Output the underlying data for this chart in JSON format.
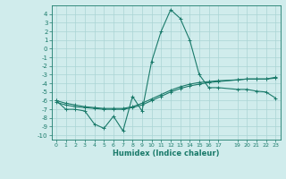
{
  "xlabel": "Humidex (Indice chaleur)",
  "x": [
    0,
    1,
    2,
    3,
    4,
    5,
    6,
    7,
    8,
    9,
    10,
    11,
    12,
    13,
    14,
    15,
    16,
    17,
    19,
    20,
    21,
    22,
    23
  ],
  "line1": [
    -6.0,
    -7.0,
    -7.0,
    -7.2,
    -8.7,
    -9.2,
    -7.8,
    -9.5,
    -5.5,
    -7.2,
    -1.5,
    2.0,
    4.5,
    3.5,
    1.0,
    -3.0,
    -4.5,
    -4.5,
    -4.7,
    -4.7,
    -4.9,
    -5.0,
    -5.7
  ],
  "line2": [
    -6.2,
    -6.5,
    -6.7,
    -6.8,
    -6.9,
    -7.0,
    -7.0,
    -7.0,
    -6.8,
    -6.5,
    -6.0,
    -5.5,
    -5.0,
    -4.6,
    -4.3,
    -4.1,
    -3.9,
    -3.8,
    -3.6,
    -3.5,
    -3.5,
    -3.5,
    -3.4
  ],
  "line3": [
    -6.0,
    -6.3,
    -6.5,
    -6.7,
    -6.8,
    -6.9,
    -6.9,
    -6.9,
    -6.7,
    -6.3,
    -5.8,
    -5.3,
    -4.8,
    -4.4,
    -4.1,
    -3.9,
    -3.8,
    -3.7,
    -3.6,
    -3.5,
    -3.5,
    -3.5,
    -3.3
  ],
  "line_color": "#1a7a6a",
  "bg_color": "#d0ecec",
  "grid_color": "#aad4d4",
  "ylim": [
    -10.5,
    5.0
  ],
  "ytick_vals": [
    -10,
    -9,
    -8,
    -7,
    -6,
    -5,
    -4,
    -3,
    -2,
    -1,
    0,
    1,
    2,
    3,
    4
  ],
  "ytick_labels": [
    "-10",
    "-9",
    "-8",
    "-7",
    "-6",
    "-5",
    "-4",
    "-3",
    "-2",
    "-1",
    "0",
    "1",
    "2",
    "3",
    "4"
  ],
  "xticks": [
    0,
    1,
    2,
    3,
    4,
    5,
    6,
    7,
    8,
    9,
    10,
    11,
    12,
    13,
    14,
    15,
    16,
    17,
    19,
    20,
    21,
    22,
    23
  ],
  "marker_size": 2.5,
  "line_width": 0.8
}
